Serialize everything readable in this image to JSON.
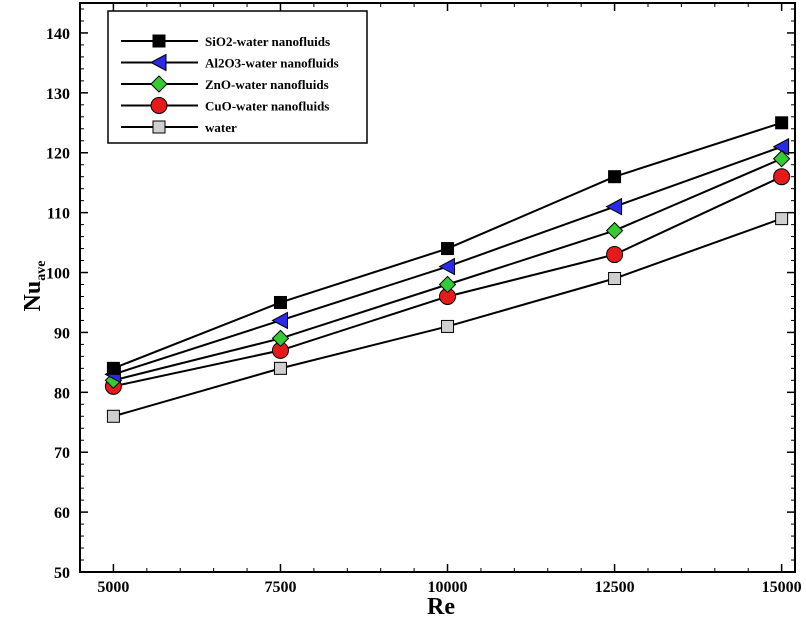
{
  "chart_data": {
    "type": "line",
    "title": "",
    "xlabel": "Re",
    "ylabel": {
      "main": "Nu",
      "sub": "ave"
    },
    "x": [
      5000,
      7500,
      10000,
      12500,
      15000
    ],
    "xlim": [
      4500,
      15200
    ],
    "ylim": [
      50,
      145
    ],
    "xticks": [
      "5000",
      "7500",
      "10000",
      "12500",
      "15000"
    ],
    "yticks": [
      "50",
      "60",
      "70",
      "80",
      "90",
      "100",
      "110",
      "120",
      "130",
      "140"
    ],
    "legend_position": "top-left",
    "grid": false,
    "series": [
      {
        "name": "SiO2-water nanofluids",
        "marker": "square",
        "color": "#000000",
        "values": [
          84,
          95,
          104,
          116,
          125
        ]
      },
      {
        "name": "Al2O3-water nanofluids",
        "marker": "triangle-left",
        "color": "#2a2ae8",
        "values": [
          83,
          92,
          101,
          111,
          121
        ]
      },
      {
        "name": "ZnO-water nanofluids",
        "marker": "diamond",
        "color": "#33cc33",
        "values": [
          82,
          89,
          98,
          107,
          119
        ]
      },
      {
        "name": "CuO-water nanofluids",
        "marker": "circle",
        "color": "#e61a1a",
        "values": [
          81,
          87,
          96,
          103,
          116
        ]
      },
      {
        "name": "water",
        "marker": "square",
        "color": "#cfcfcf",
        "values": [
          76,
          84,
          91,
          99,
          109
        ]
      }
    ]
  }
}
